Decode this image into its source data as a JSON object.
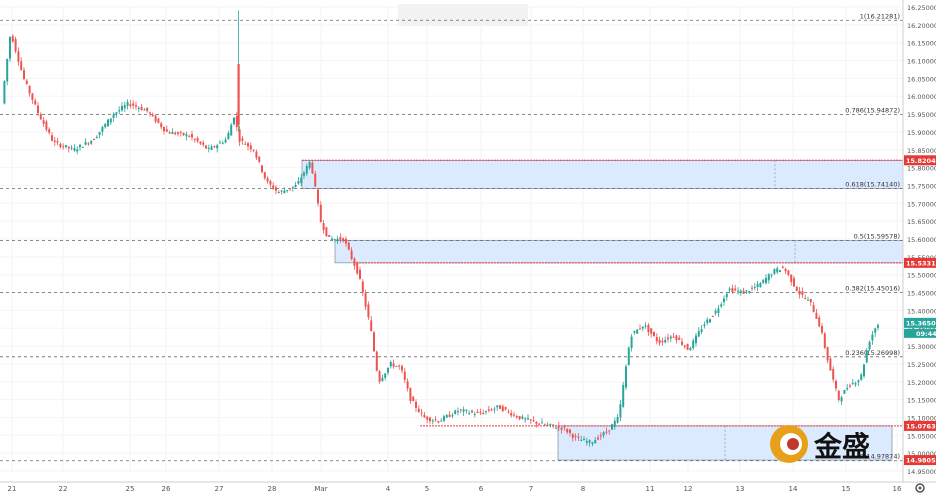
{
  "chart_data": {
    "type": "candlestick",
    "ylim": [
      14.95,
      16.25
    ],
    "y_ticks": [
      "16.25000",
      "16.20000",
      "16.15000",
      "16.10000",
      "16.05000",
      "16.00000",
      "15.95000",
      "15.90000",
      "15.85000",
      "15.80000",
      "15.75000",
      "15.70000",
      "15.65000",
      "15.60000",
      "15.55000",
      "15.50000",
      "15.45000",
      "15.40000",
      "15.35000",
      "15.30000",
      "15.25000",
      "15.20000",
      "15.15000",
      "15.10000",
      "15.05000",
      "15.00000",
      "14.95000"
    ],
    "x_ticks": [
      "21",
      "22",
      "25",
      "26",
      "27",
      "28",
      "Mar",
      "4",
      "5",
      "6",
      "7",
      "8",
      "11",
      "12",
      "13",
      "14",
      "15",
      "16"
    ],
    "fib_levels": [
      {
        "label": "1(16.21281)",
        "value": 16.21281
      },
      {
        "label": "0.786(15.94872)",
        "value": 15.94872
      },
      {
        "label": "0.618(15.74140)",
        "value": 15.7414
      },
      {
        "label": "0.5(15.59578)",
        "value": 15.59578
      },
      {
        "label": "0.382(15.45016)",
        "value": 15.45016
      },
      {
        "label": "0.236(15.26998)",
        "value": 15.26998
      },
      {
        "label": "0(14.97874)",
        "value": 14.97874
      }
    ],
    "zones": [
      {
        "top": 15.82049,
        "bottom": 15.7414
      },
      {
        "top": 15.59578,
        "bottom": 15.53315
      },
      {
        "top": 15.07636,
        "bottom": 14.98058
      }
    ],
    "price_tags": [
      {
        "label": "15.82049",
        "value": 15.82049,
        "color": "#e53935"
      },
      {
        "label": "15.53315",
        "value": 15.53315,
        "color": "#e53935"
      },
      {
        "label": "15.07636",
        "value": 15.07636,
        "color": "#e53935"
      },
      {
        "label": "14.98058",
        "value": 14.98058,
        "color": "#e53935"
      },
      {
        "label": "15.36502",
        "value": 15.36502,
        "color": "#26a69a"
      }
    ],
    "timer_label": "09:44",
    "colors": {
      "up": "#26a69a",
      "down": "#ef5350",
      "zone": "#dbeafe",
      "resistance": "#e53935"
    }
  },
  "brand": {
    "logo_text": "金盛"
  }
}
